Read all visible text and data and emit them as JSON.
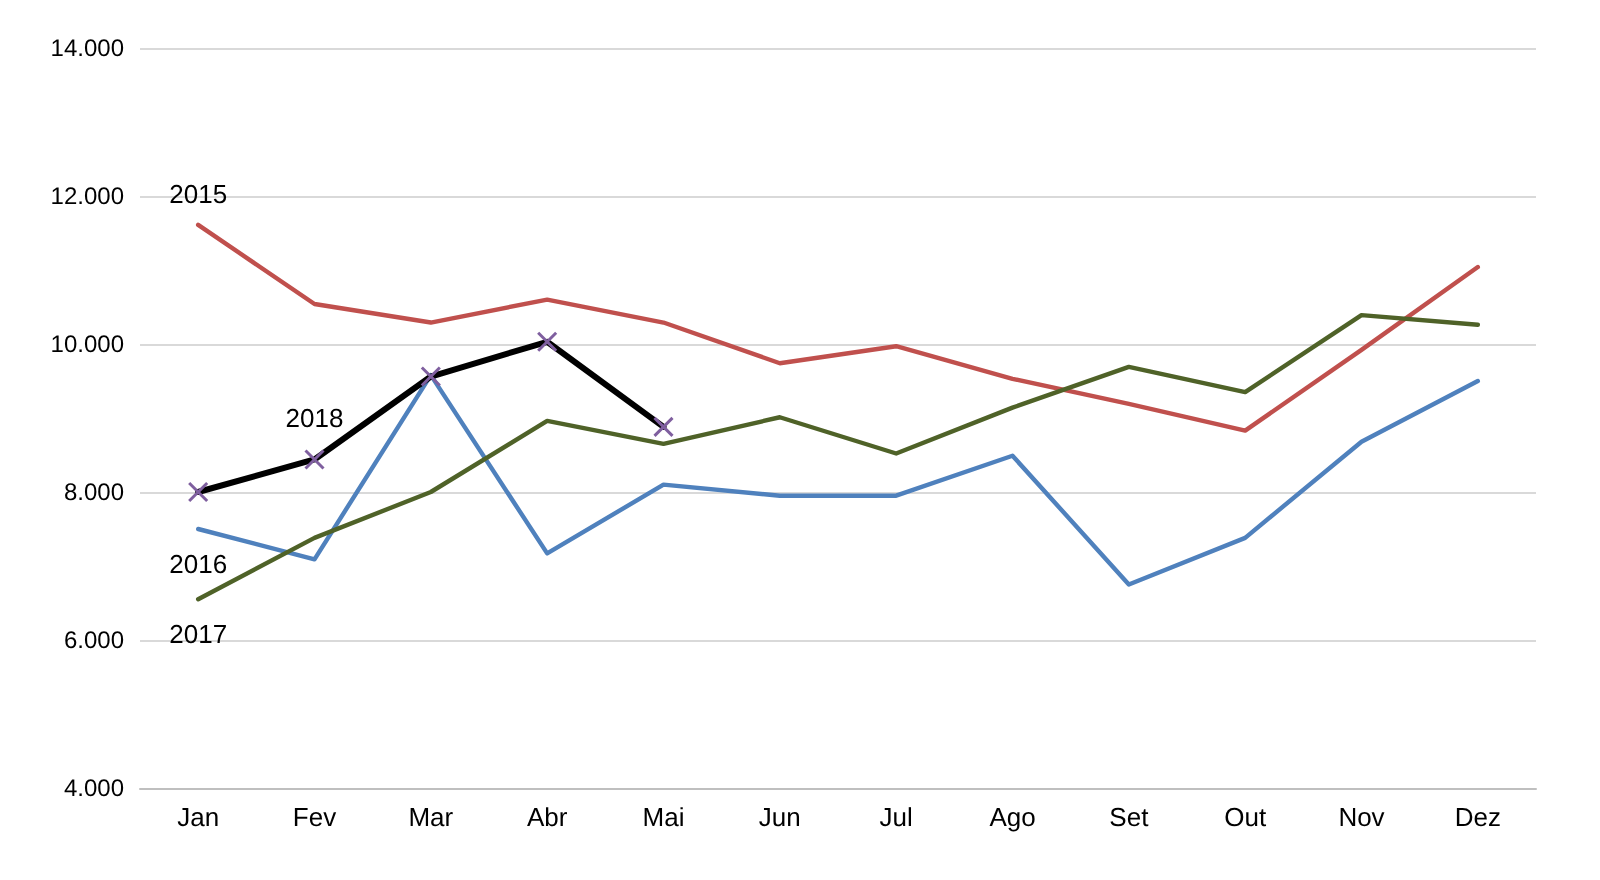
{
  "chart_data": {
    "type": "line",
    "categories": [
      "Jan",
      "Fev",
      "Mar",
      "Abr",
      "Mai",
      "Jun",
      "Jul",
      "Ago",
      "Set",
      "Out",
      "Nov",
      "Dez"
    ],
    "series": [
      {
        "name": "2015",
        "color": "#c0504d",
        "values": [
          11610,
          10540,
          10290,
          10600,
          10290,
          9740,
          9970,
          9530,
          9190,
          8830,
          9920,
          11040
        ]
      },
      {
        "name": "2016",
        "color": "#4f81bd",
        "values": [
          7500,
          7090,
          9580,
          7170,
          8100,
          7950,
          7950,
          8490,
          6750,
          7380,
          8680,
          9500
        ]
      },
      {
        "name": "2017",
        "color": "#4f6228",
        "values": [
          6550,
          7380,
          8000,
          8960,
          8650,
          9010,
          8520,
          9140,
          9690,
          9350,
          10390,
          10260
        ]
      },
      {
        "name": "2018",
        "color": "#000000",
        "marker": "cross",
        "values": [
          8000,
          8440,
          9560,
          10030,
          8880,
          null,
          null,
          null,
          null,
          null,
          null,
          null
        ]
      }
    ],
    "ylim": [
      4000,
      14000
    ],
    "yticks": [
      {
        "value": 4000,
        "label": "4.000"
      },
      {
        "value": 6000,
        "label": "6.000"
      },
      {
        "value": 8000,
        "label": "8.000"
      },
      {
        "value": 10000,
        "label": "10.000"
      },
      {
        "value": 12000,
        "label": "12.000"
      },
      {
        "value": 14000,
        "label": "14.000"
      }
    ],
    "grid": "y",
    "legend": false,
    "marker": "none",
    "line_style": "solid"
  }
}
